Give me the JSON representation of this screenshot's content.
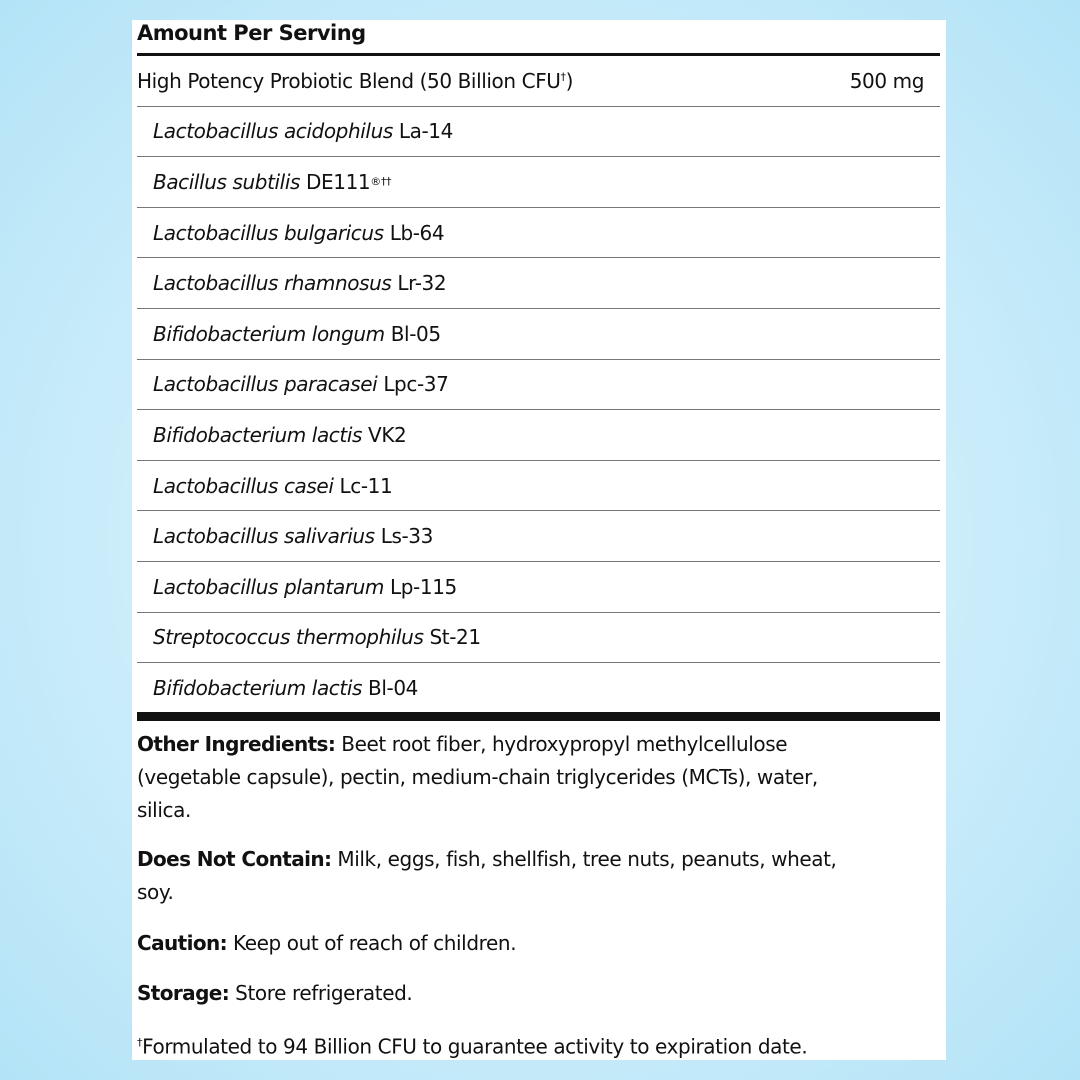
{
  "header": "Amount Per Serving",
  "blend": {
    "name": "High Potency Probiotic Blend (50 Billion CFU",
    "mark": "†",
    ")": ")",
    "amount": "500 mg"
  },
  "strains": [
    {
      "species": "Lactobacillus acidophilus",
      "code": "La-14",
      "mark": ""
    },
    {
      "species": "Bacillus subtilis",
      "code": "DE111",
      "mark": "®††"
    },
    {
      "species": "Lactobacillus bulgaricus",
      "code": "Lb-64",
      "mark": ""
    },
    {
      "species": "Lactobacillus rhamnosus",
      "code": "Lr-32",
      "mark": ""
    },
    {
      "species": "Bifidobacterium longum",
      "code": "Bl-05",
      "mark": ""
    },
    {
      "species": "Lactobacillus paracasei",
      "code": "Lpc-37",
      "mark": ""
    },
    {
      "species": "Bifidobacterium lactis",
      "code": "VK2",
      "mark": ""
    },
    {
      "species": "Lactobacillus casei",
      "code": "Lc-11",
      "mark": ""
    },
    {
      "species": "Lactobacillus salivarius",
      "code": "Ls-33",
      "mark": ""
    },
    {
      "species": "Lactobacillus plantarum",
      "code": "Lp-115",
      "mark": ""
    },
    {
      "species": "Streptococcus thermophilus",
      "code": "St-21",
      "mark": ""
    },
    {
      "species": "Bifidobacterium lactis",
      "code": "Bl-04",
      "mark": ""
    }
  ],
  "other_ingredients": {
    "label": "Other Ingredients:",
    "text": "Beet root fiber, hydroxypropyl methylcellulose (vegetable capsule), pectin, medium-chain triglycerides (MCTs), water, silica."
  },
  "does_not_contain": {
    "label": "Does Not Contain:",
    "text": "Milk, eggs, fish, shellfish, tree nuts, peanuts, wheat, soy."
  },
  "caution": {
    "label": "Caution:",
    "text": "Keep out of reach of children."
  },
  "storage": {
    "label": "Storage:",
    "text": "Store refrigerated."
  },
  "footnote": {
    "mark": "†",
    "text": "Formulated to 94 Billion CFU to guarantee activity to expiration date."
  }
}
